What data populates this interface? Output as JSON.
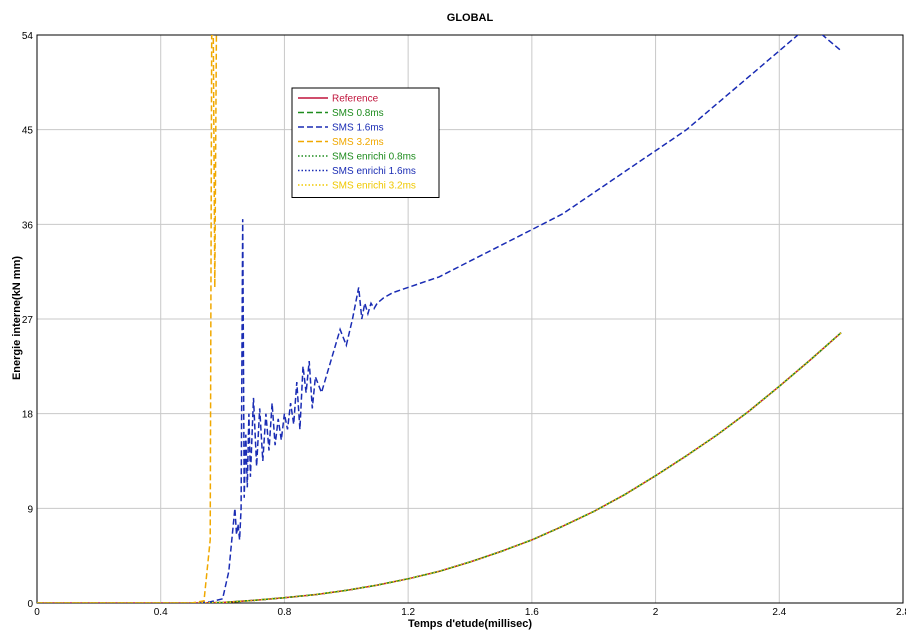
{
  "chart_data": {
    "type": "line",
    "title": "GLOBAL",
    "xlabel": "Temps d'etude(millisec)",
    "ylabel": "Energie interne(kN mm)",
    "xlim": [
      0,
      2.8
    ],
    "ylim": [
      0,
      54
    ],
    "x_ticks": [
      0,
      0.4,
      0.8,
      1.2,
      1.6,
      2,
      2.4,
      2.8
    ],
    "x_tick_labels": [
      "0",
      "0.4",
      "0.8",
      "1.2",
      "1.6",
      "2",
      "2.4",
      "2.8"
    ],
    "y_ticks": [
      0,
      9,
      18,
      27,
      36,
      45,
      54
    ],
    "y_tick_labels": [
      "0",
      "9",
      "18",
      "27",
      "36",
      "45",
      "54"
    ],
    "grid": true,
    "legend_position": "upper-center",
    "series": [
      {
        "name": "Reference",
        "color": "#c0143c",
        "dash": "solid",
        "x": [
          0,
          0.5,
          0.6,
          0.7,
          0.8,
          0.9,
          1.0,
          1.1,
          1.2,
          1.3,
          1.4,
          1.5,
          1.6,
          1.7,
          1.8,
          1.9,
          2.0,
          2.1,
          2.2,
          2.3,
          2.4,
          2.5,
          2.6
        ],
        "y": [
          0,
          0,
          0.05,
          0.25,
          0.5,
          0.8,
          1.2,
          1.7,
          2.3,
          3.0,
          3.9,
          4.9,
          6.0,
          7.3,
          8.7,
          10.3,
          12.1,
          14.0,
          16.0,
          18.2,
          20.6,
          23.1,
          25.7
        ]
      },
      {
        "name": "SMS 0.8ms",
        "color": "#1e8c1e",
        "dash": "dashed",
        "x": [
          0,
          0.5,
          0.6,
          0.7,
          0.8,
          0.9,
          1.0,
          1.1,
          1.2,
          1.3,
          1.4,
          1.5,
          1.6,
          1.7,
          1.8,
          1.9,
          2.0,
          2.1,
          2.2,
          2.3,
          2.4,
          2.5,
          2.6
        ],
        "y": [
          0,
          0,
          0.05,
          0.25,
          0.5,
          0.8,
          1.2,
          1.7,
          2.3,
          3.0,
          3.9,
          4.9,
          6.0,
          7.3,
          8.7,
          10.3,
          12.1,
          14.0,
          16.0,
          18.2,
          20.6,
          23.1,
          25.7
        ]
      },
      {
        "name": "SMS 1.6ms",
        "color": "#1a2cb4",
        "dash": "dashed",
        "x": [
          0,
          0.5,
          0.56,
          0.6,
          0.62,
          0.63,
          0.64,
          0.645,
          0.65,
          0.655,
          0.66,
          0.665,
          0.67,
          0.675,
          0.68,
          0.685,
          0.69,
          0.7,
          0.71,
          0.72,
          0.73,
          0.74,
          0.75,
          0.76,
          0.77,
          0.78,
          0.79,
          0.8,
          0.81,
          0.82,
          0.83,
          0.84,
          0.85,
          0.86,
          0.87,
          0.88,
          0.89,
          0.9,
          0.92,
          0.94,
          0.96,
          0.98,
          1.0,
          1.02,
          1.04,
          1.05,
          1.06,
          1.07,
          1.08,
          1.09,
          1.1,
          1.12,
          1.15,
          1.2,
          1.3,
          1.4,
          1.5,
          1.6,
          1.7,
          1.8,
          1.9,
          2.0,
          2.1,
          2.2,
          2.3,
          2.4,
          2.5,
          2.6
        ],
        "y": [
          0,
          0,
          0.1,
          0.4,
          3.0,
          6.0,
          9.0,
          6.5,
          7.5,
          6.0,
          9.0,
          36.5,
          10.0,
          16.0,
          11.0,
          18.0,
          12.0,
          19.5,
          13.0,
          18.5,
          13.5,
          18.0,
          14.5,
          19.0,
          15.0,
          17.5,
          15.5,
          18.0,
          16.5,
          19.0,
          17.0,
          21.0,
          16.5,
          22.5,
          20.0,
          23.0,
          18.5,
          21.5,
          20.0,
          22.0,
          24.0,
          26.0,
          24.5,
          27.0,
          30.0,
          27.0,
          28.5,
          27.5,
          28.5,
          28.0,
          28.5,
          29.0,
          29.5,
          30.0,
          31.0,
          32.5,
          34.0,
          35.5,
          37.0,
          39.0,
          41.0,
          43.0,
          45.0,
          47.5,
          50.0,
          52.5,
          55.0,
          52.5
        ]
      },
      {
        "name": "SMS 3.2ms",
        "color": "#f0a800",
        "dash": "dashed",
        "x": [
          0,
          0.5,
          0.54,
          0.56,
          0.565,
          0.57,
          0.575,
          0.58,
          0.585
        ],
        "y": [
          0,
          0,
          0.2,
          6.0,
          54,
          54,
          30.0,
          54,
          54
        ]
      },
      {
        "name": "SMS enrichi 0.8ms",
        "color": "#1e8c1e",
        "dash": "dotted",
        "x": [
          0,
          0.5,
          0.6,
          0.7,
          0.8,
          0.9,
          1.0,
          1.1,
          1.2,
          1.3,
          1.4,
          1.5,
          1.6,
          1.7,
          1.8,
          1.9,
          2.0,
          2.1,
          2.2,
          2.3,
          2.4,
          2.5,
          2.6
        ],
        "y": [
          0,
          0,
          0.05,
          0.25,
          0.5,
          0.8,
          1.2,
          1.7,
          2.3,
          3.0,
          3.9,
          4.9,
          6.0,
          7.3,
          8.7,
          10.3,
          12.1,
          14.0,
          16.0,
          18.2,
          20.6,
          23.1,
          25.7
        ]
      },
      {
        "name": "SMS enrichi 1.6ms",
        "color": "#1a2cb4",
        "dash": "dotted",
        "x": [
          0,
          0.5,
          0.6,
          0.7,
          0.8,
          0.9,
          1.0,
          1.1,
          1.2,
          1.3,
          1.4,
          1.5,
          1.6,
          1.7,
          1.8,
          1.9,
          2.0,
          2.1,
          2.2,
          2.3,
          2.4,
          2.5,
          2.6
        ],
        "y": [
          0,
          0,
          0.05,
          0.25,
          0.5,
          0.8,
          1.2,
          1.7,
          2.3,
          3.0,
          3.9,
          4.9,
          6.0,
          7.3,
          8.7,
          10.3,
          12.1,
          14.0,
          16.0,
          18.2,
          20.6,
          23.1,
          25.7
        ]
      },
      {
        "name": "SMS enrichi 3.2ms",
        "color": "#f0c800",
        "dash": "dotted",
        "x": [
          0,
          0.5,
          0.6,
          0.7,
          0.8,
          0.9,
          1.0,
          1.1,
          1.2,
          1.3,
          1.4,
          1.5,
          1.6,
          1.7,
          1.8,
          1.9,
          2.0,
          2.1,
          2.2,
          2.3,
          2.4,
          2.5,
          2.6
        ],
        "y": [
          0,
          0,
          0.05,
          0.25,
          0.5,
          0.8,
          1.2,
          1.7,
          2.3,
          3.0,
          3.9,
          4.9,
          6.0,
          7.3,
          8.7,
          10.3,
          12.1,
          14.0,
          16.0,
          18.2,
          20.6,
          23.1,
          25.7
        ]
      }
    ]
  }
}
